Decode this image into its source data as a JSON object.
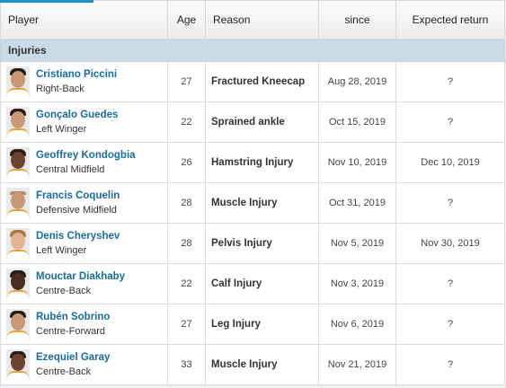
{
  "headers": {
    "player": "Player",
    "age": "Age",
    "reason": "Reason",
    "since": "since",
    "expected_return": "Expected return"
  },
  "group_label": "Injuries",
  "rows": [
    {
      "name": "Cristiano Piccini",
      "position": "Right-Back",
      "age": "27",
      "reason": "Fractured Kneecap",
      "since": "Aug 28, 2019",
      "return": "?"
    },
    {
      "name": "Gonçalo Guedes",
      "position": "Left Winger",
      "age": "22",
      "reason": "Sprained ankle",
      "since": "Oct 15, 2019",
      "return": "?"
    },
    {
      "name": "Geoffrey Kondogbia",
      "position": "Central Midfield",
      "age": "26",
      "reason": "Hamstring Injury",
      "since": "Nov 10, 2019",
      "return": "Dec 10, 2019"
    },
    {
      "name": "Francis Coquelin",
      "position": "Defensive Midfield",
      "age": "28",
      "reason": "Muscle Injury",
      "since": "Oct 31, 2019",
      "return": "?"
    },
    {
      "name": "Denis Cheryshev",
      "position": "Left Winger",
      "age": "28",
      "reason": "Pelvis Injury",
      "since": "Nov 5, 2019",
      "return": "Nov 30, 2019"
    },
    {
      "name": "Mouctar Diakhaby",
      "position": "Centre-Back",
      "age": "22",
      "reason": "Calf Injury",
      "since": "Nov 3, 2019",
      "return": "?"
    },
    {
      "name": "Rubén Sobrino",
      "position": "Centre-Forward",
      "age": "27",
      "reason": "Leg Injury",
      "since": "Nov 6, 2019",
      "return": "?"
    },
    {
      "name": "Ezequiel Garay",
      "position": "Centre-Back",
      "age": "33",
      "reason": "Muscle Injury",
      "since": "Nov 21, 2019",
      "return": "?"
    }
  ]
}
